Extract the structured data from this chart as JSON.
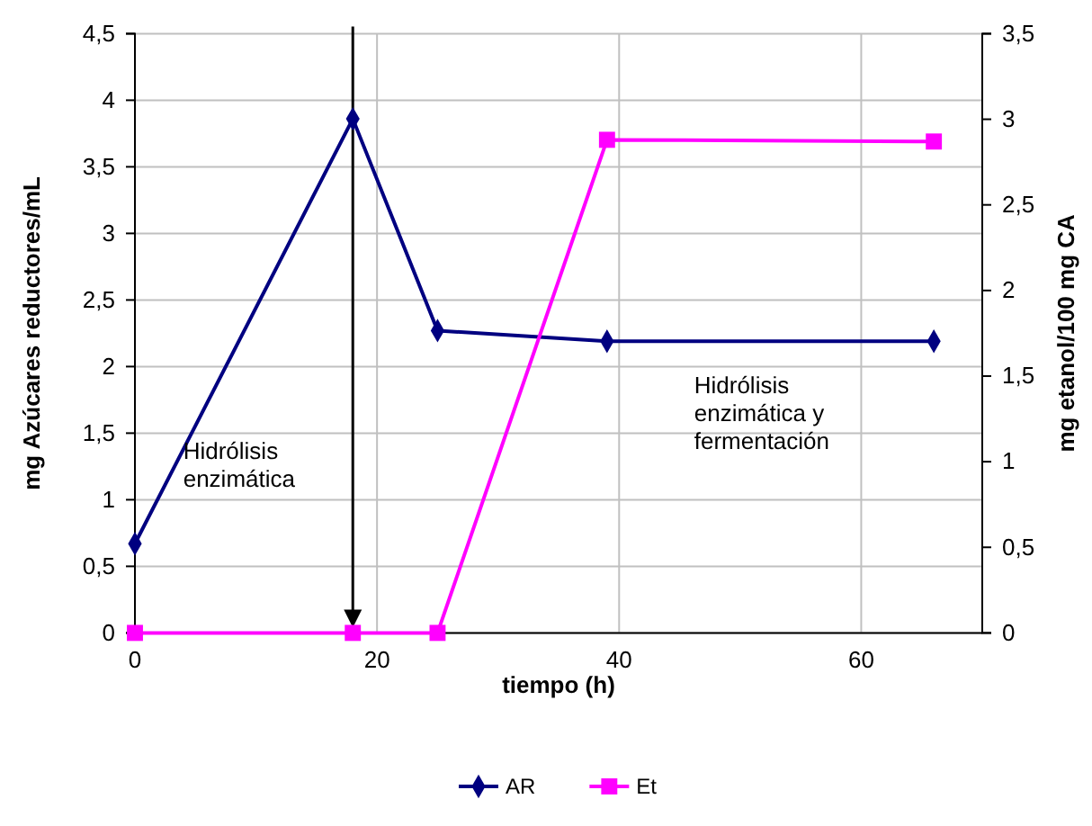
{
  "chart_data": {
    "type": "line",
    "xlabel": "tiempo (h)",
    "ylabel": "mg Azúcares reductores/mL",
    "y2label": "mg etanol/100 mg  CA",
    "xlim": [
      0,
      70
    ],
    "xticks": [
      0,
      20,
      40,
      60
    ],
    "ylim": [
      0,
      4.5
    ],
    "yticks": [
      0,
      {
        "value": 0.5,
        "label": "0,5"
      },
      1,
      {
        "value": 1.5,
        "label": "1,5"
      },
      2,
      {
        "value": 2.5,
        "label": "2,5"
      },
      3,
      {
        "value": 3.5,
        "label": "3,5"
      },
      4,
      {
        "value": 4.5,
        "label": "4,5"
      }
    ],
    "y2lim": [
      0,
      3.5
    ],
    "y2ticks": [
      0,
      {
        "value": 0.5,
        "label": "0,5"
      },
      1,
      {
        "value": 1.5,
        "label": "1,5"
      },
      2,
      {
        "value": 2.5,
        "label": "2,5"
      },
      3,
      {
        "value": 3.5,
        "label": "3,5"
      }
    ],
    "x": [
      0,
      18,
      25,
      39,
      66
    ],
    "series": [
      {
        "name": "AR",
        "color": "#000080",
        "marker": "diamond",
        "values": [
          0.67,
          3.86,
          2.27,
          2.19,
          2.19
        ]
      },
      {
        "name": "Et",
        "color": "#ff00ff",
        "marker": "square",
        "axis": "y2",
        "values": [
          0,
          0,
          0,
          2.88,
          2.87
        ]
      }
    ],
    "ref_lines": [
      {
        "axis": "x",
        "value": 18,
        "color": "#000000"
      }
    ],
    "annotations": [
      "Hidrólisis enzimática",
      "Hidrólisis enzimática y fermentación"
    ],
    "grid": true,
    "legend": "bottom"
  }
}
